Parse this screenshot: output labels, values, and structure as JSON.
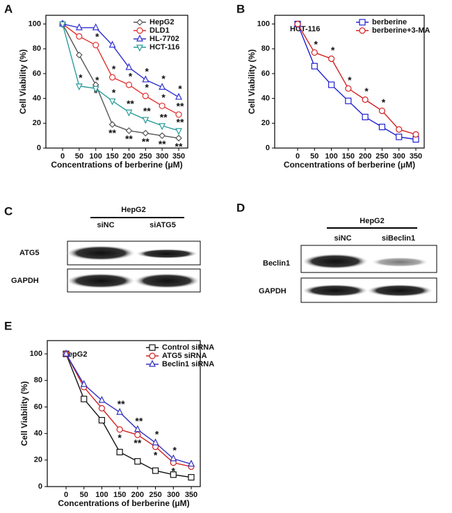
{
  "panel_labels": [
    "A",
    "B",
    "C",
    "D",
    "E"
  ],
  "chart_data": [
    {
      "type": "line",
      "x_label": "Concentrations of berberine (μM)",
      "y_label": "Cell Viability (%)",
      "categories": [
        0,
        50,
        100,
        150,
        200,
        250,
        300,
        350
      ],
      "ylim": [
        0,
        107
      ],
      "yticks": [
        0,
        20,
        40,
        60,
        80,
        100
      ],
      "legend": "upper right",
      "series": [
        {
          "name": "HepG2",
          "color": "#555555",
          "marker": "diamond",
          "values": [
            100,
            75,
            51,
            19,
            14,
            12,
            10,
            8
          ],
          "significance": [
            null,
            null,
            "*",
            "**",
            "**",
            "**",
            "**",
            "**"
          ]
        },
        {
          "name": "DLD1",
          "color": "#e03030",
          "marker": "circle",
          "values": [
            100,
            90,
            83,
            57,
            51,
            42,
            34,
            27
          ],
          "significance": [
            null,
            null,
            "*",
            "*",
            "*",
            "*",
            "*",
            "**"
          ]
        },
        {
          "name": "HL-7702",
          "color": "#3030d0",
          "marker": "triangle",
          "values": [
            100,
            97,
            97,
            83,
            65,
            55,
            49,
            41
          ],
          "significance": [
            null,
            null,
            null,
            null,
            null,
            "*",
            "*",
            "*"
          ]
        },
        {
          "name": "HCT-116",
          "color": "#2a9a9a",
          "marker": "down",
          "values": [
            100,
            50,
            48,
            38,
            29,
            23,
            18,
            14
          ],
          "significance": [
            null,
            "*",
            "*",
            "*",
            "**",
            "**",
            "**",
            "**"
          ]
        }
      ]
    },
    {
      "type": "line",
      "title": "HCT-116",
      "x_label": "Concentrations of berberine (μM)",
      "y_label": "Cell Viability (%)",
      "categories": [
        0,
        50,
        100,
        150,
        200,
        250,
        300,
        350
      ],
      "ylim": [
        0,
        107
      ],
      "yticks": [
        0,
        20,
        40,
        60,
        80,
        100
      ],
      "legend": "upper right",
      "series": [
        {
          "name": "berberine",
          "color": "#2020d0",
          "marker": "square",
          "values": [
            100,
            66,
            51,
            38,
            25,
            17,
            9,
            7
          ]
        },
        {
          "name": "berberine+3-MA",
          "color": "#d02020",
          "marker": "circle",
          "values": [
            100,
            77,
            72,
            48,
            39,
            30,
            15,
            11
          ],
          "significance": [
            null,
            "*",
            "*",
            "*",
            "*",
            "*",
            null,
            null
          ]
        }
      ]
    },
    {
      "type": "line",
      "title": "HepG2",
      "x_label": "Concentrations of berberine (μM)",
      "y_label": "Cell Viability (%)",
      "categories": [
        0,
        50,
        100,
        150,
        200,
        250,
        300,
        350
      ],
      "ylim": [
        0,
        110
      ],
      "yticks": [
        0,
        20,
        40,
        60,
        80,
        100
      ],
      "legend": "upper right",
      "series": [
        {
          "name": "Control siRNA",
          "color": "#111111",
          "marker": "square",
          "values": [
            100,
            66,
            50,
            26,
            19,
            12,
            9,
            7
          ]
        },
        {
          "name": "ATG5 siRNA",
          "color": "#d02020",
          "marker": "circle",
          "values": [
            100,
            75,
            59,
            43,
            39,
            30,
            18,
            15
          ],
          "significance": [
            null,
            null,
            null,
            "*",
            "**",
            "*",
            "*",
            null
          ]
        },
        {
          "name": "Beclin1 siRNA",
          "color": "#3030c0",
          "marker": "triangle",
          "values": [
            100,
            77,
            65,
            56,
            43,
            33,
            21,
            17
          ],
          "significance": [
            null,
            null,
            null,
            "**",
            "**",
            "*",
            "*",
            null
          ]
        }
      ]
    }
  ],
  "blots": [
    {
      "title": "HepG2",
      "lanes": [
        "siNC",
        "siATG5"
      ],
      "rows": [
        "ATG5",
        "GAPDH"
      ]
    },
    {
      "title": "HepG2",
      "lanes": [
        "siNC",
        "siBeclin1"
      ],
      "rows": [
        "Beclin1",
        "GAPDH"
      ]
    }
  ]
}
